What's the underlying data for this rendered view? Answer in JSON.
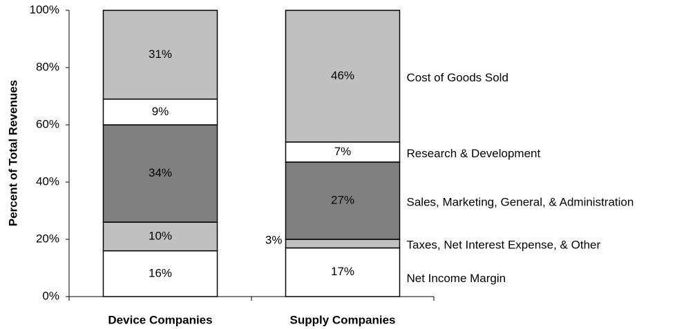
{
  "chart_data": {
    "type": "stacked-bar",
    "y_label": "Percent of Total Revenues",
    "categories": [
      "Device Companies",
      "Supply Companies"
    ],
    "series": [
      {
        "name": "Net Income Margin",
        "color": "#ffffff",
        "values": [
          16,
          17
        ],
        "value_labels": [
          "16%",
          "17%"
        ]
      },
      {
        "name": "Taxes, Net Interest Expense, & Other",
        "color": "#c0c0c0",
        "values": [
          10,
          3
        ],
        "value_labels": [
          "10%",
          "3%"
        ]
      },
      {
        "name": "Sales, Marketing, General, & Administration",
        "color": "#808080",
        "values": [
          34,
          27
        ],
        "value_labels": [
          "34%",
          "27%"
        ]
      },
      {
        "name": "Research & Development",
        "color": "#ffffff",
        "values": [
          9,
          7
        ],
        "value_labels": [
          "9%",
          "7%"
        ]
      },
      {
        "name": "Cost of Goods Sold",
        "color": "#c0c0c0",
        "values": [
          31,
          46
        ],
        "value_labels": [
          "31%",
          "46%"
        ]
      }
    ],
    "ylim": [
      0,
      100
    ],
    "yticks": [
      {
        "value": 0,
        "label": "0%"
      },
      {
        "value": 20,
        "label": "20%"
      },
      {
        "value": 40,
        "label": "40%"
      },
      {
        "value": 60,
        "label": "60%"
      },
      {
        "value": 80,
        "label": "80%"
      },
      {
        "value": 100,
        "label": "100%"
      }
    ]
  }
}
